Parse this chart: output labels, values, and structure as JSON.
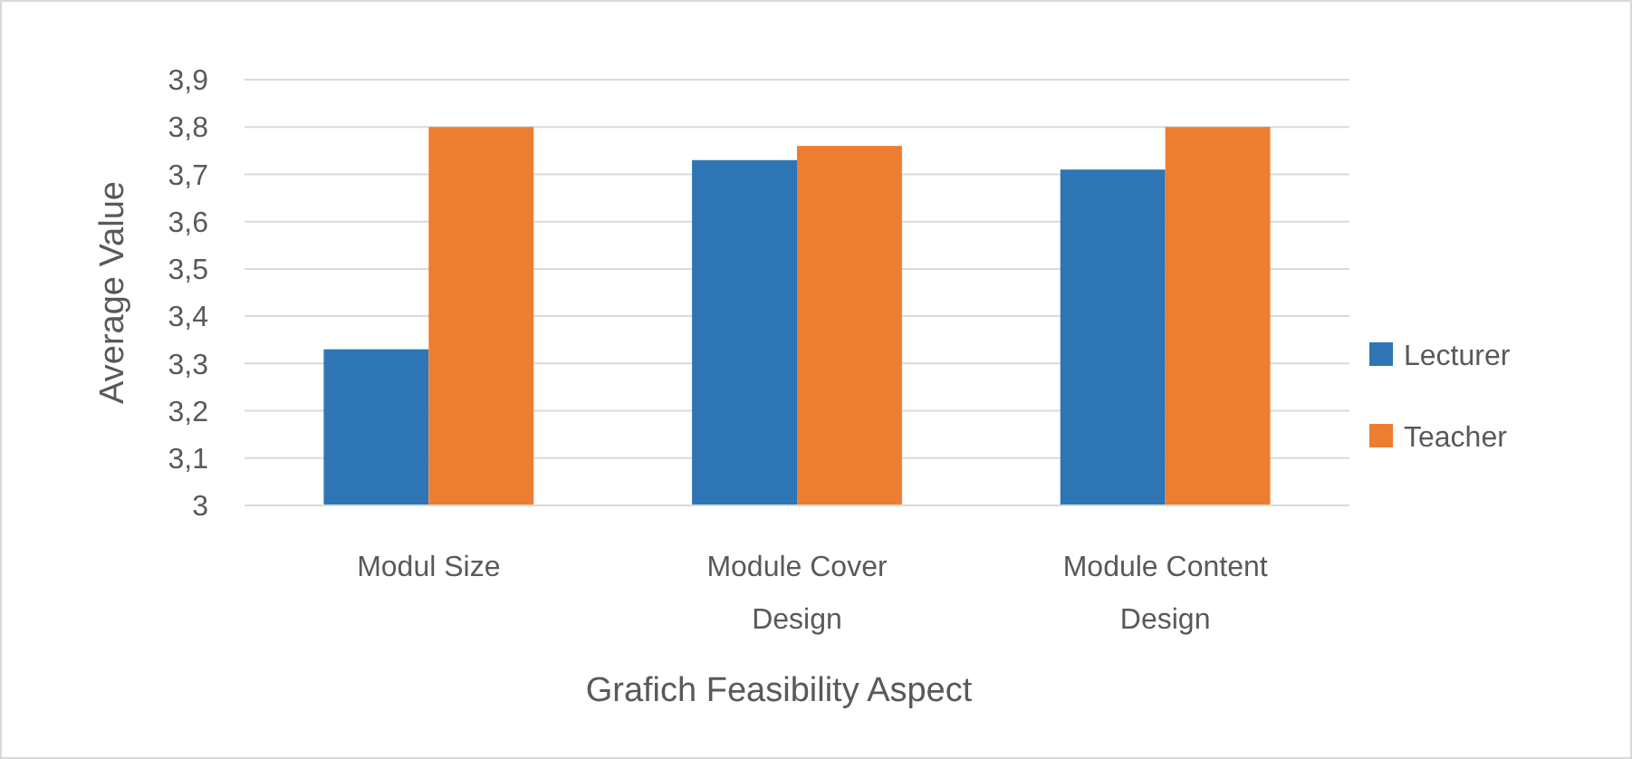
{
  "chart_data": {
    "type": "bar",
    "xlabel": "Grafich Feasibility Aspect",
    "ylabel": "Average Value",
    "categories": [
      "Modul Size",
      "Module Cover Design",
      "Module Content Design"
    ],
    "series": [
      {
        "name": "Lecturer",
        "color": "#2e75b6",
        "values": [
          3.33,
          3.73,
          3.71
        ]
      },
      {
        "name": "Teacher",
        "color": "#ed7d31",
        "values": [
          3.8,
          3.76,
          3.8
        ]
      }
    ],
    "ylim": [
      3,
      3.9
    ],
    "yticks": [
      3,
      {
        "value": 3.1,
        "label": "3,1"
      },
      {
        "value": 3.2,
        "label": "3,2"
      },
      {
        "value": 3.3,
        "label": "3,3"
      },
      {
        "value": 3.4,
        "label": "3,4"
      },
      {
        "value": 3.5,
        "label": "3,5"
      },
      {
        "value": 3.6,
        "label": "3,6"
      },
      {
        "value": 3.7,
        "label": "3,7"
      },
      {
        "value": 3.8,
        "label": "3,8"
      },
      {
        "value": 3.9,
        "label": "3,9"
      }
    ],
    "grid": "y",
    "legend": "right"
  }
}
